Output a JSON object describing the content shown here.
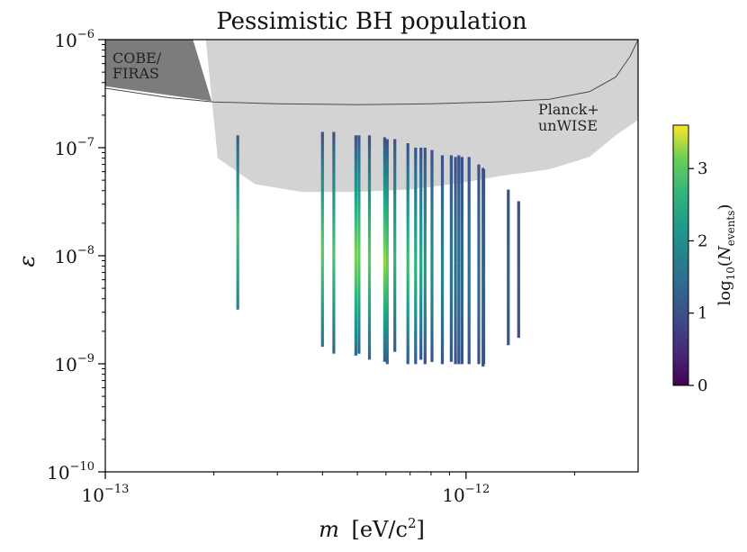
{
  "chart_data": {
    "type": "scatter",
    "title": "Pessimistic BH population",
    "xlabel": "m [eV/c²]",
    "xlabel_parts": {
      "var": "m",
      "unit": "[eV/c",
      "exp": "2",
      "close": "]"
    },
    "ylabel": "ε",
    "xscale": "log",
    "yscale": "log",
    "xlim": [
      1e-13,
      3e-12
    ],
    "ylim": [
      1e-10,
      1e-06
    ],
    "x_ticks": [
      {
        "value": 1e-13,
        "base": "10",
        "exp": "−13"
      },
      {
        "value": 1e-12,
        "base": "10",
        "exp": "−12"
      }
    ],
    "y_ticks": [
      {
        "value": 1e-10,
        "base": "10",
        "exp": "−10"
      },
      {
        "value": 1e-09,
        "base": "10",
        "exp": "−9"
      },
      {
        "value": 1e-08,
        "base": "10",
        "exp": "−8"
      },
      {
        "value": 1e-07,
        "base": "10",
        "exp": "−7"
      },
      {
        "value": 1e-06,
        "base": "10",
        "exp": "−6"
      }
    ],
    "regions": [
      {
        "name": "Planck+ unWISE",
        "label_lines": [
          "Planck+",
          "unWISE"
        ],
        "color": "#d3d3d3",
        "boundary": [
          [
            1.9e-13,
            1e-06
          ],
          [
            2.05e-13,
            8e-08
          ],
          [
            2.6e-13,
            4.6e-08
          ],
          [
            3.5e-13,
            3.9e-08
          ],
          [
            5e-13,
            3.9e-08
          ],
          [
            7e-13,
            4.1e-08
          ],
          [
            1e-12,
            4.8e-08
          ],
          [
            1.25e-12,
            5.5e-08
          ],
          [
            1.7e-12,
            6.3e-08
          ],
          [
            2.2e-12,
            8.2e-08
          ],
          [
            2.6e-12,
            1.3e-07
          ],
          [
            3e-12,
            1.8e-07
          ],
          [
            3e-12,
            1e-06
          ]
        ]
      },
      {
        "name": "COBE/ FIRAS",
        "label_lines": [
          "COBE/",
          "FIRAS"
        ],
        "color": "#7c7c7c",
        "boundary": [
          [
            1e-13,
            1e-06
          ],
          [
            1.75e-13,
            1e-06
          ],
          [
            1.97e-13,
            2.7e-07
          ],
          [
            1e-13,
            3.7e-07
          ]
        ]
      }
    ],
    "curve": {
      "name": "thin boundary",
      "color": "#4a4a4a",
      "points": [
        [
          1e-13,
          3.55e-07
        ],
        [
          1.5e-13,
          2.9e-07
        ],
        [
          2e-13,
          2.65e-07
        ],
        [
          3e-13,
          2.55e-07
        ],
        [
          5e-13,
          2.5e-07
        ],
        [
          8e-13,
          2.55e-07
        ],
        [
          1.2e-12,
          2.65e-07
        ],
        [
          1.7e-12,
          2.8e-07
        ],
        [
          2.2e-12,
          3.3e-07
        ],
        [
          2.6e-12,
          4.5e-07
        ],
        [
          2.85e-12,
          7e-07
        ],
        [
          3e-12,
          1e-06
        ]
      ]
    },
    "series": [
      {
        "m": 2.33e-13,
        "eps_top": 1.3e-07,
        "eps_bottom": 3.2e-09,
        "log_peak": 2.8,
        "log_top": 1.2,
        "log_bottom": 1.8
      },
      {
        "m": 4e-13,
        "eps_top": 1.4e-07,
        "eps_bottom": 1.45e-09,
        "log_peak": 3.0,
        "log_top": 1.0,
        "log_bottom": 1.5
      },
      {
        "m": 4.3e-13,
        "eps_top": 1.4e-07,
        "eps_bottom": 1.25e-09,
        "log_peak": 2.9,
        "log_top": 1.0,
        "log_bottom": 1.3
      },
      {
        "m": 4.95e-13,
        "eps_top": 1.3e-07,
        "eps_bottom": 1.2e-09,
        "log_peak": 3.2,
        "log_top": 1.0,
        "log_bottom": 1.4
      },
      {
        "m": 5.05e-13,
        "eps_top": 1.3e-07,
        "eps_bottom": 1.25e-09,
        "log_peak": 3.1,
        "log_top": 1.0,
        "log_bottom": 1.3
      },
      {
        "m": 5.4e-13,
        "eps_top": 1.3e-07,
        "eps_bottom": 1.1e-09,
        "log_peak": 3.0,
        "log_top": 1.0,
        "log_bottom": 1.3
      },
      {
        "m": 5.95e-13,
        "eps_top": 1.25e-07,
        "eps_bottom": 1.05e-09,
        "log_peak": 3.3,
        "log_top": 1.0,
        "log_bottom": 1.2
      },
      {
        "m": 6.05e-13,
        "eps_top": 1.2e-07,
        "eps_bottom": 1e-09,
        "log_peak": 3.1,
        "log_top": 1.0,
        "log_bottom": 1.2
      },
      {
        "m": 6.35e-13,
        "eps_top": 1.2e-07,
        "eps_bottom": 1.3e-09,
        "log_peak": 2.6,
        "log_top": 1.0,
        "log_bottom": 1.1
      },
      {
        "m": 6.9e-13,
        "eps_top": 1.1e-07,
        "eps_bottom": 1e-09,
        "log_peak": 2.8,
        "log_top": 1.0,
        "log_bottom": 1.1
      },
      {
        "m": 7.25e-13,
        "eps_top": 1e-07,
        "eps_bottom": 1e-09,
        "log_peak": 2.6,
        "log_top": 1.0,
        "log_bottom": 1.1
      },
      {
        "m": 7.5e-13,
        "eps_top": 1e-07,
        "eps_bottom": 1.1e-09,
        "log_peak": 2.4,
        "log_top": 1.0,
        "log_bottom": 1.0
      },
      {
        "m": 7.7e-13,
        "eps_top": 1e-07,
        "eps_bottom": 1e-09,
        "log_peak": 2.2,
        "log_top": 1.0,
        "log_bottom": 1.0
      },
      {
        "m": 8.05e-13,
        "eps_top": 9.5e-08,
        "eps_bottom": 1.05e-09,
        "log_peak": 2.0,
        "log_top": 1.0,
        "log_bottom": 1.0
      },
      {
        "m": 8.6e-13,
        "eps_top": 8.5e-08,
        "eps_bottom": 1e-09,
        "log_peak": 1.8,
        "log_top": 1.0,
        "log_bottom": 1.0
      },
      {
        "m": 9.1e-13,
        "eps_top": 8.5e-08,
        "eps_bottom": 1.05e-09,
        "log_peak": 1.6,
        "log_top": 1.0,
        "log_bottom": 1.0
      },
      {
        "m": 9.35e-13,
        "eps_top": 8.2e-08,
        "eps_bottom": 1e-09,
        "log_peak": 1.5,
        "log_top": 1.0,
        "log_bottom": 1.0
      },
      {
        "m": 9.55e-13,
        "eps_top": 8.5e-08,
        "eps_bottom": 1e-09,
        "log_peak": 1.5,
        "log_top": 1.0,
        "log_bottom": 1.0
      },
      {
        "m": 9.75e-13,
        "eps_top": 8.2e-08,
        "eps_bottom": 1e-09,
        "log_peak": 1.4,
        "log_top": 1.0,
        "log_bottom": 1.0
      },
      {
        "m": 1.02e-12,
        "eps_top": 8.2e-08,
        "eps_bottom": 1e-09,
        "log_peak": 1.5,
        "log_top": 1.0,
        "log_bottom": 1.0
      },
      {
        "m": 1.085e-12,
        "eps_top": 7e-08,
        "eps_bottom": 1e-09,
        "log_peak": 1.4,
        "log_top": 1.0,
        "log_bottom": 1.0
      },
      {
        "m": 1.115e-12,
        "eps_top": 6.5e-08,
        "eps_bottom": 9.5e-10,
        "log_peak": 1.4,
        "log_top": 1.0,
        "log_bottom": 1.0
      },
      {
        "m": 1.12e-12,
        "eps_top": 6.3e-08,
        "eps_bottom": 1e-09,
        "log_peak": 1.3,
        "log_top": 1.0,
        "log_bottom": 1.0
      },
      {
        "m": 1.31e-12,
        "eps_top": 4.1e-08,
        "eps_bottom": 1.5e-09,
        "log_peak": 1.2,
        "log_top": 1.0,
        "log_bottom": 1.0
      },
      {
        "m": 1.4e-12,
        "eps_top": 3.2e-08,
        "eps_bottom": 1.75e-09,
        "log_peak": 1.1,
        "log_top": 1.0,
        "log_bottom": 1.0
      }
    ],
    "colorbar": {
      "label": "log10(N_events)",
      "label_parts": {
        "fn": "log",
        "sub": "10",
        "open": "(",
        "var": "N",
        "varsub": "events",
        "close": ")"
      },
      "colormap": "viridis",
      "range": [
        0,
        3.6
      ],
      "ticks": [
        {
          "value": 0,
          "label": "0"
        },
        {
          "value": 1,
          "label": "1"
        },
        {
          "value": 2,
          "label": "2"
        },
        {
          "value": 3,
          "label": "3"
        }
      ]
    }
  }
}
